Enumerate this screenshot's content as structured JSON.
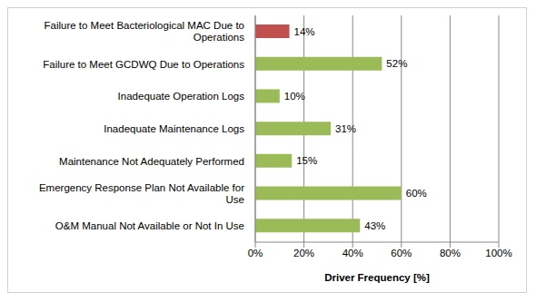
{
  "chart_data": {
    "type": "bar",
    "orientation": "horizontal",
    "categories": [
      "Failure to Meet Bacteriological MAC Due to Operations",
      "Failure to Meet GCDWQ Due to Operations",
      "Inadequate Operation Logs",
      "Inadequate Maintenance Logs",
      "Maintenance Not Adequately Performed",
      "Emergency Response Plan Not Available for Use",
      "O&M Manual  Not Available or Not In Use"
    ],
    "values": [
      14,
      52,
      10,
      31,
      15,
      60,
      43
    ],
    "value_labels": [
      "14%",
      "52%",
      "10%",
      "31%",
      "15%",
      "60%",
      "43%"
    ],
    "colors": [
      "#c0504d",
      "#9bbb59",
      "#9bbb59",
      "#9bbb59",
      "#9bbb59",
      "#9bbb59",
      "#9bbb59"
    ],
    "xlabel": "Driver Frequency [%]",
    "xlim": [
      0,
      100
    ],
    "xticks": [
      {
        "value": 0,
        "label": "0%"
      },
      {
        "value": 20,
        "label": "20%"
      },
      {
        "value": 40,
        "label": "40%"
      },
      {
        "value": 60,
        "label": "60%"
      },
      {
        "value": 80,
        "label": "80%"
      },
      {
        "value": 100,
        "label": "100%"
      }
    ],
    "grid": true,
    "data_labels": true
  }
}
